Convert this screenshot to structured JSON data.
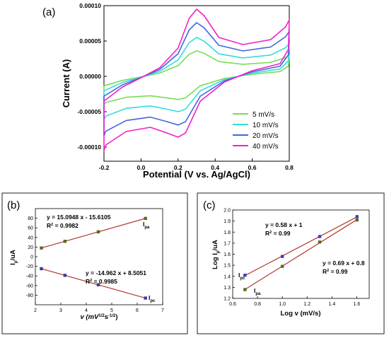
{
  "chart_data": [
    {
      "id": "a",
      "type": "line",
      "panel_label": "(a)",
      "xlabel": "Potential (V vs. Ag/AgCl)",
      "ylabel": "Current (A)",
      "xlim": [
        -0.2,
        0.8
      ],
      "ylim": [
        -0.00012,
        0.0001
      ],
      "x_ticks": [
        "-0.2",
        "0.0",
        "0.2",
        "0.4",
        "0.6",
        "0.8"
      ],
      "x_tick_values": [
        -0.2,
        0.0,
        0.2,
        0.4,
        0.6,
        0.8
      ],
      "y_ticks": [
        "-0.00010",
        "-0.00005",
        "0.00000",
        "0.00005",
        "0.00010"
      ],
      "y_tick_values": [
        -0.0001,
        -5e-05,
        0.0,
        5e-05,
        0.0001
      ],
      "legend_position": "bottom-right",
      "series": [
        {
          "name": "5 mV/s",
          "color": "#77dd55",
          "scale": 0.38,
          "pa": 8e-06,
          "pc": -8e-06,
          "cap": 4e-06
        },
        {
          "name": "10 mV/s",
          "color": "#33dddd",
          "scale": 0.58,
          "pa": 1.2e-05,
          "pc": -1.2e-05,
          "cap": 8.5e-06
        },
        {
          "name": "20 mV/s",
          "color": "#4466dd",
          "scale": 0.8,
          "pa": 1.7e-05,
          "pc": -1.7e-05,
          "cap": 1.5e-05
        },
        {
          "name": "40 mV/s",
          "color": "#ee22cc",
          "scale": 1.0,
          "pa": 2.5e-05,
          "pc": -2.5e-05,
          "cap": 2.9e-05
        }
      ]
    },
    {
      "id": "b",
      "type": "scatter",
      "panel_label": "(b)",
      "xlabel": "v (mV",
      "xlabel_sup": "1/2",
      "xlabel_mid": "s",
      "xlabel_sup2": "-1/2",
      "xlabel_end": ")",
      "ylabel": "I",
      "ylabel_sub": "p",
      "ylabel_end": "/uA",
      "xlim": [
        2,
        7
      ],
      "ylim": [
        -100,
        100
      ],
      "x_ticks": [
        "2",
        "3",
        "4",
        "5",
        "6",
        "7"
      ],
      "x_tick_values": [
        2,
        3,
        4,
        5,
        6,
        7
      ],
      "y_ticks": [
        "-80",
        "-60",
        "-40",
        "-20",
        "0",
        "20",
        "40",
        "60",
        "80"
      ],
      "y_tick_values": [
        -80,
        -60,
        -40,
        -20,
        0,
        20,
        40,
        60,
        80
      ],
      "series": [
        {
          "label": "I",
          "label_sub": "pa",
          "color": "#556b22",
          "line_color": "#b03a2e",
          "x": [
            2.236,
            3.162,
            4.472,
            6.325
          ],
          "y": [
            18.1,
            32.0,
            51.7,
            79.6
          ],
          "equation": "y = 15.0948 x - 15.6105",
          "r2": "= 0.9982"
        },
        {
          "label": "I",
          "label_sub": "pc",
          "color": "#3a3aa0",
          "line_color": "#b03a2e",
          "x": [
            2.236,
            3.162,
            4.472,
            6.325
          ],
          "y": [
            -25.0,
            -38.8,
            -58.4,
            -86.1
          ],
          "equation": "y = -14.962 x + 8.5051",
          "r2": "= 0.9985"
        }
      ]
    },
    {
      "id": "c",
      "type": "scatter",
      "panel_label": "(c)",
      "xlabel": "Log v (mV/s)",
      "ylabel": "Log I",
      "ylabel_sub": "p",
      "ylabel_end": "/uA",
      "xlim": [
        0.6,
        1.7
      ],
      "ylim": [
        1.2,
        2.0
      ],
      "x_ticks": [
        "0.6",
        "0.8",
        "1.0",
        "1.2",
        "1.4",
        "1.6"
      ],
      "x_tick_values": [
        0.6,
        0.8,
        1.0,
        1.2,
        1.4,
        1.6
      ],
      "y_ticks": [
        "1.2",
        "1.3",
        "1.4",
        "1.5",
        "1.6",
        "1.7",
        "1.8",
        "1.9",
        "2.0"
      ],
      "y_tick_values": [
        1.2,
        1.3,
        1.4,
        1.5,
        1.6,
        1.7,
        1.8,
        1.9,
        2.0
      ],
      "series": [
        {
          "label": "I",
          "label_sub": "pc",
          "color": "#3a3ad0",
          "line_color": "#b03a2e",
          "x": [
            0.699,
            1.0,
            1.301,
            1.602
          ],
          "y": [
            1.41,
            1.58,
            1.76,
            1.94
          ],
          "equation": "y = 0.58 x + 1",
          "r2": "= 0.99"
        },
        {
          "label": "I",
          "label_sub": "pa",
          "color": "#556b22",
          "line_color": "#b03a2e",
          "x": [
            0.699,
            1.0,
            1.301,
            1.602
          ],
          "y": [
            1.28,
            1.49,
            1.71,
            1.91
          ],
          "equation": "y = 0.69 x + 0.8",
          "r2": "= 0.99"
        }
      ]
    }
  ]
}
